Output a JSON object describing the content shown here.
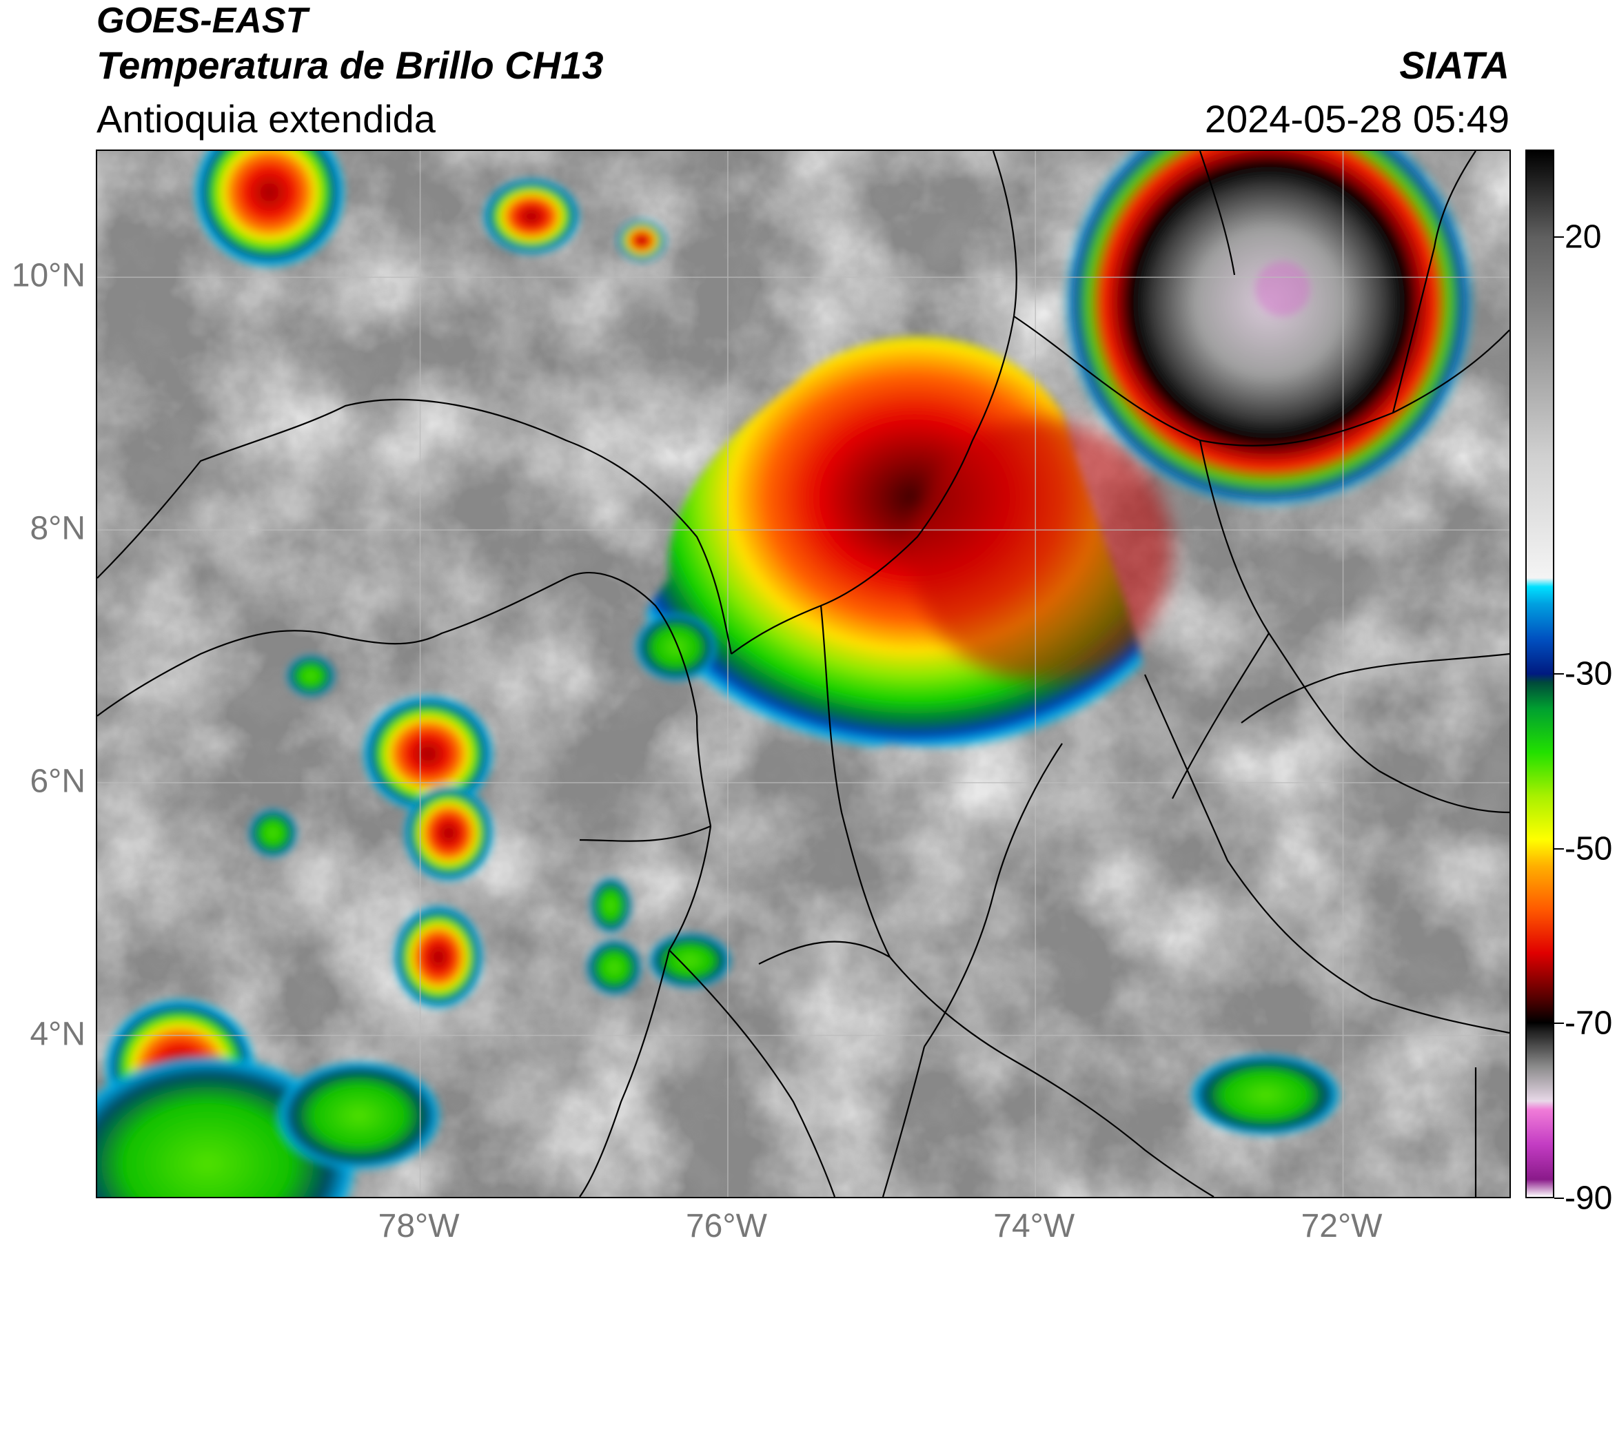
{
  "header": {
    "satellite": "GOES-EAST",
    "product": "Temperatura de Brillo CH13",
    "region": "Antioquia extendida",
    "organization": "SIATA",
    "timestamp": "2024-05-28 05:49"
  },
  "map": {
    "extent": {
      "lon_min": -80.1,
      "lon_max": -70.9,
      "lat_min": 2.7,
      "lat_max": 11.0
    },
    "latitude_labels": [
      {
        "value": 10,
        "label": "10°N"
      },
      {
        "value": 8,
        "label": "8°N"
      },
      {
        "value": 6,
        "label": "6°N"
      },
      {
        "value": 4,
        "label": "4°N"
      }
    ],
    "longitude_labels": [
      {
        "value": -78,
        "label": "78°W"
      },
      {
        "value": -76,
        "label": "76°W"
      },
      {
        "value": -74,
        "label": "74°W"
      },
      {
        "value": -72,
        "label": "72°W"
      }
    ],
    "gridlines": true,
    "colors": {
      "gridline": "#bbbbbb",
      "coastline": "#000000"
    }
  },
  "colorbar": {
    "range": [
      -90,
      30
    ],
    "ticks": [
      {
        "value": 20,
        "label": "20"
      },
      {
        "value": -30,
        "label": "-30"
      },
      {
        "value": -50,
        "label": "-50"
      },
      {
        "value": -70,
        "label": "-70"
      },
      {
        "value": -90,
        "label": "-90"
      }
    ],
    "stops": [
      {
        "value": -90,
        "color": "#ffffff"
      },
      {
        "value": -88,
        "color": "#8a1a8a"
      },
      {
        "value": -84,
        "color": "#c33cc3"
      },
      {
        "value": -80,
        "color": "#f07cd8"
      },
      {
        "value": -79,
        "color": "#e8d8e8"
      },
      {
        "value": -75,
        "color": "#8a8a8a"
      },
      {
        "value": -71,
        "color": "#202020"
      },
      {
        "value": -70,
        "color": "#000000"
      },
      {
        "value": -67,
        "color": "#5a0000"
      },
      {
        "value": -62,
        "color": "#e00000"
      },
      {
        "value": -57,
        "color": "#ff5a00"
      },
      {
        "value": -52,
        "color": "#ffb000"
      },
      {
        "value": -49,
        "color": "#ffff00"
      },
      {
        "value": -44,
        "color": "#a8f000"
      },
      {
        "value": -39,
        "color": "#22e000"
      },
      {
        "value": -34,
        "color": "#00a030"
      },
      {
        "value": -31,
        "color": "#004a3a"
      },
      {
        "value": -30,
        "color": "#001a80"
      },
      {
        "value": -26,
        "color": "#0050c0"
      },
      {
        "value": -22,
        "color": "#00a0e0"
      },
      {
        "value": -20,
        "color": "#00e0ff"
      },
      {
        "value": -19,
        "color": "#f4f4f4"
      },
      {
        "value": -5,
        "color": "#d0d0d0"
      },
      {
        "value": 10,
        "color": "#8c8c8c"
      },
      {
        "value": 20,
        "color": "#606060"
      },
      {
        "value": 30,
        "color": "#000000"
      }
    ]
  }
}
